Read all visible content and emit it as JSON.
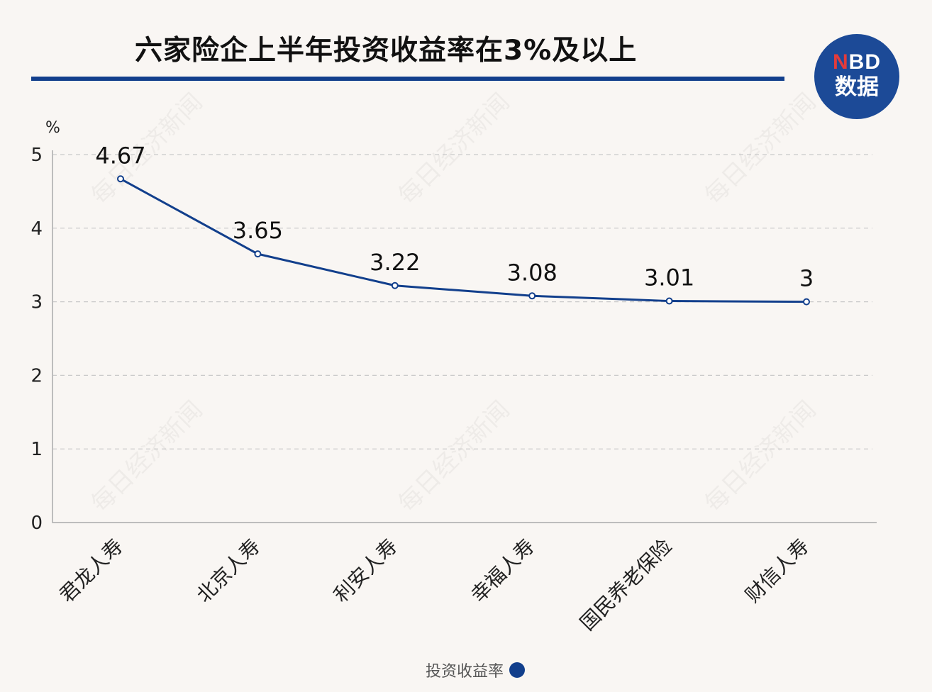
{
  "title": "六家险企上半年投资收益率在3%及以上",
  "logo": {
    "line1_prefix": "N",
    "line1_rest": "BD",
    "line2": "数据"
  },
  "watermark": "每日经济新闻",
  "colors": {
    "series_line": "#123f8c",
    "title_rule": "#123f8c",
    "logo_bg": "#1c4a97",
    "logo_accent": "#e23b3b",
    "background": "#f9f6f3"
  },
  "chart_data": {
    "type": "line",
    "title": "六家险企上半年投资收益率在3%及以上",
    "ylabel": "%",
    "xlabel": "",
    "ylim": [
      0,
      5
    ],
    "yticks": [
      0,
      1,
      2,
      3,
      4,
      5
    ],
    "grid": true,
    "legend_position": "bottom-center",
    "categories": [
      "君龙人寿",
      "北京人寿",
      "利安人寿",
      "幸福人寿",
      "国民养老保险",
      "财信人寿"
    ],
    "series": [
      {
        "name": "投资收益率",
        "values": [
          4.67,
          3.65,
          3.22,
          3.08,
          3.01,
          3
        ],
        "labels": [
          "4.67",
          "3.65",
          "3.22",
          "3.08",
          "3.01",
          "3"
        ]
      }
    ]
  }
}
